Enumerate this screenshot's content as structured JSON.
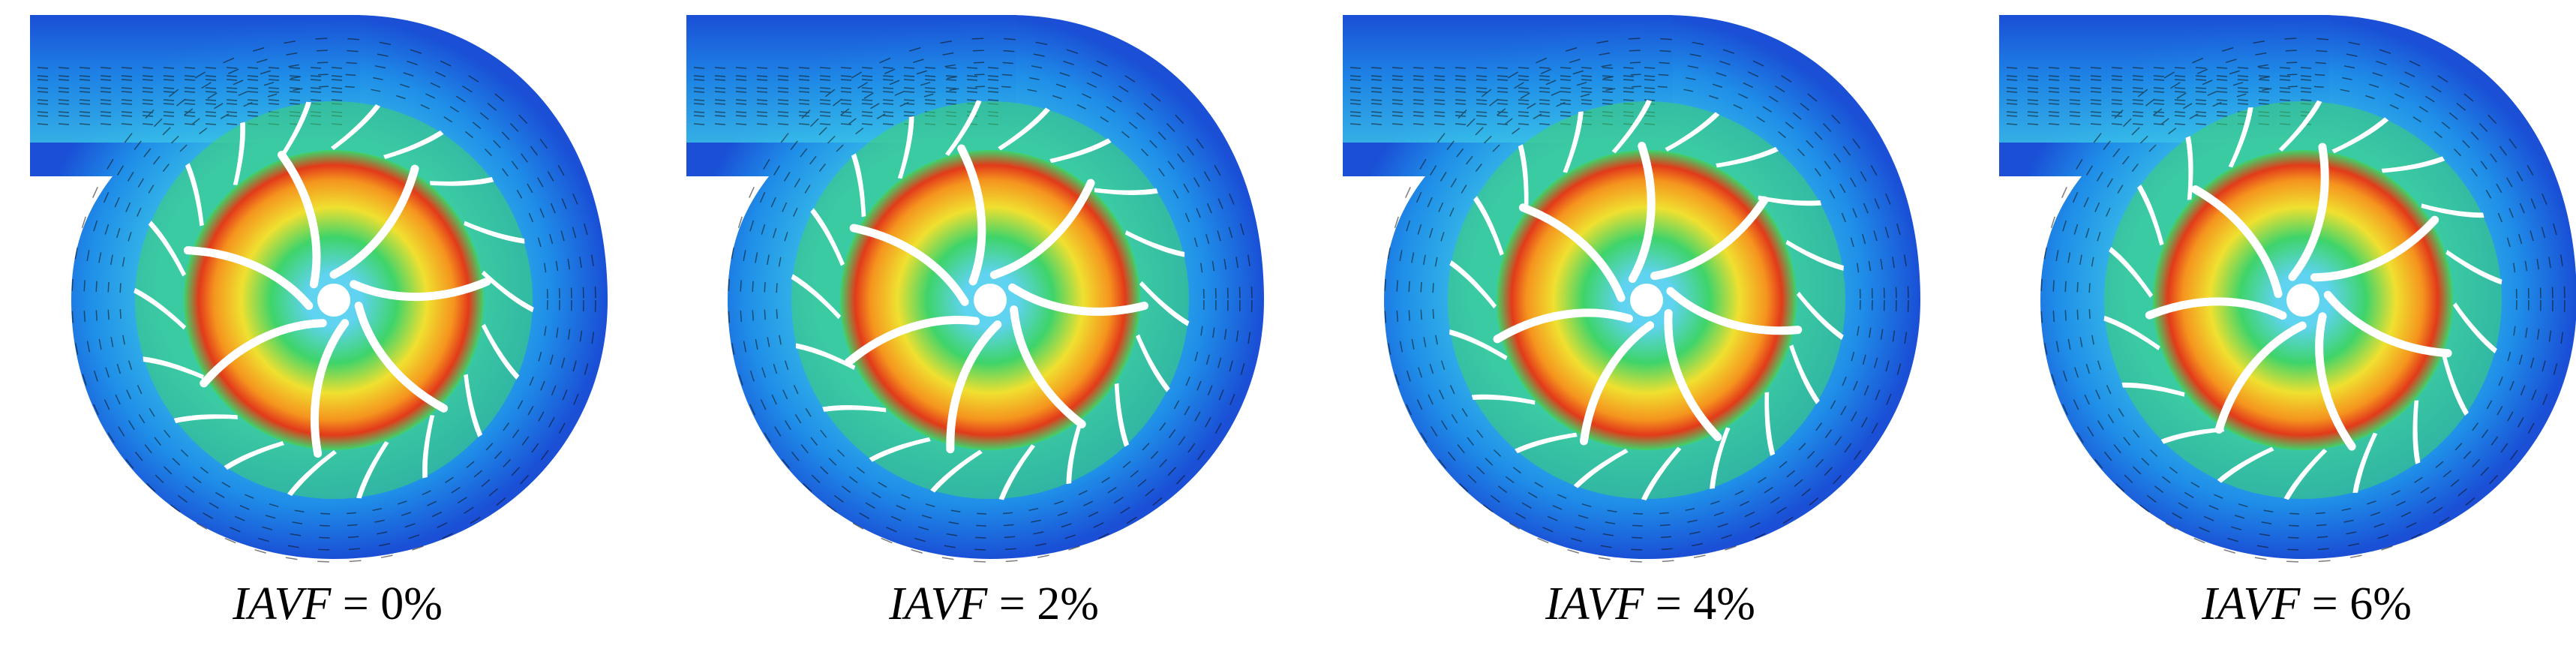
{
  "figure": {
    "panels": [
      {
        "variable": "IAVF",
        "equals": " = ",
        "value": "0%"
      },
      {
        "variable": "IAVF",
        "equals": " = ",
        "value": "2%"
      },
      {
        "variable": "IAVF",
        "equals": " = ",
        "value": "4%"
      },
      {
        "variable": "IAVF",
        "equals": " = ",
        "value": "6%"
      }
    ],
    "colors": {
      "casing_outer": "#1a4fd6",
      "casing_mid": "#1f8ee8",
      "casing_inner": "#39c0e8",
      "impeller_green": "#3ed46a",
      "impeller_yellow": "#f0e030",
      "impeller_orange": "#f5941e",
      "impeller_red": "#e23a1a",
      "hub_cyan": "#5fd3f0",
      "blade_white": "#ffffff",
      "vector_black": "#111111"
    },
    "impeller_blade_count": 7,
    "diffuser_vane_count": 18
  }
}
